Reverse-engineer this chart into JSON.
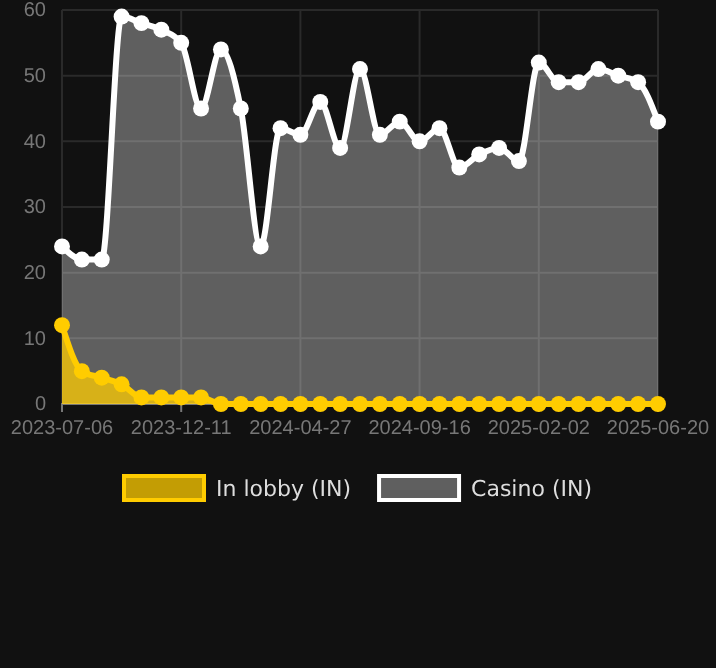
{
  "chart_data": {
    "type": "area",
    "categories": [
      "2023-07-06",
      null,
      null,
      null,
      null,
      null,
      "2023-12-11",
      null,
      null,
      null,
      null,
      null,
      "2024-04-27",
      null,
      null,
      null,
      null,
      null,
      "2024-09-16",
      null,
      null,
      null,
      null,
      null,
      "2025-02-02",
      null,
      null,
      null,
      null,
      null,
      "2025-06-20"
    ],
    "series": [
      {
        "name": "In lobby (IN)",
        "color": "#ffcc00",
        "values": [
          12,
          5,
          4,
          3,
          1,
          1,
          1,
          1,
          0,
          0,
          0,
          0,
          0,
          0,
          0,
          0,
          0,
          0,
          0,
          0,
          0,
          0,
          0,
          0,
          0,
          0,
          0,
          0,
          0,
          0,
          0
        ]
      },
      {
        "name": "Casino (IN)",
        "color": "#ffffff",
        "values": [
          24,
          22,
          22,
          59,
          58,
          57,
          55,
          45,
          54,
          45,
          24,
          42,
          41,
          46,
          39,
          51,
          41,
          43,
          40,
          42,
          36,
          38,
          39,
          37,
          52,
          49,
          49,
          51,
          50,
          49,
          43
        ]
      }
    ],
    "ylim": [
      0,
      60
    ],
    "yticks": [
      0,
      10,
      20,
      30,
      40,
      50,
      60
    ],
    "grid": true,
    "legend": "bottom",
    "marker": "circle"
  }
}
